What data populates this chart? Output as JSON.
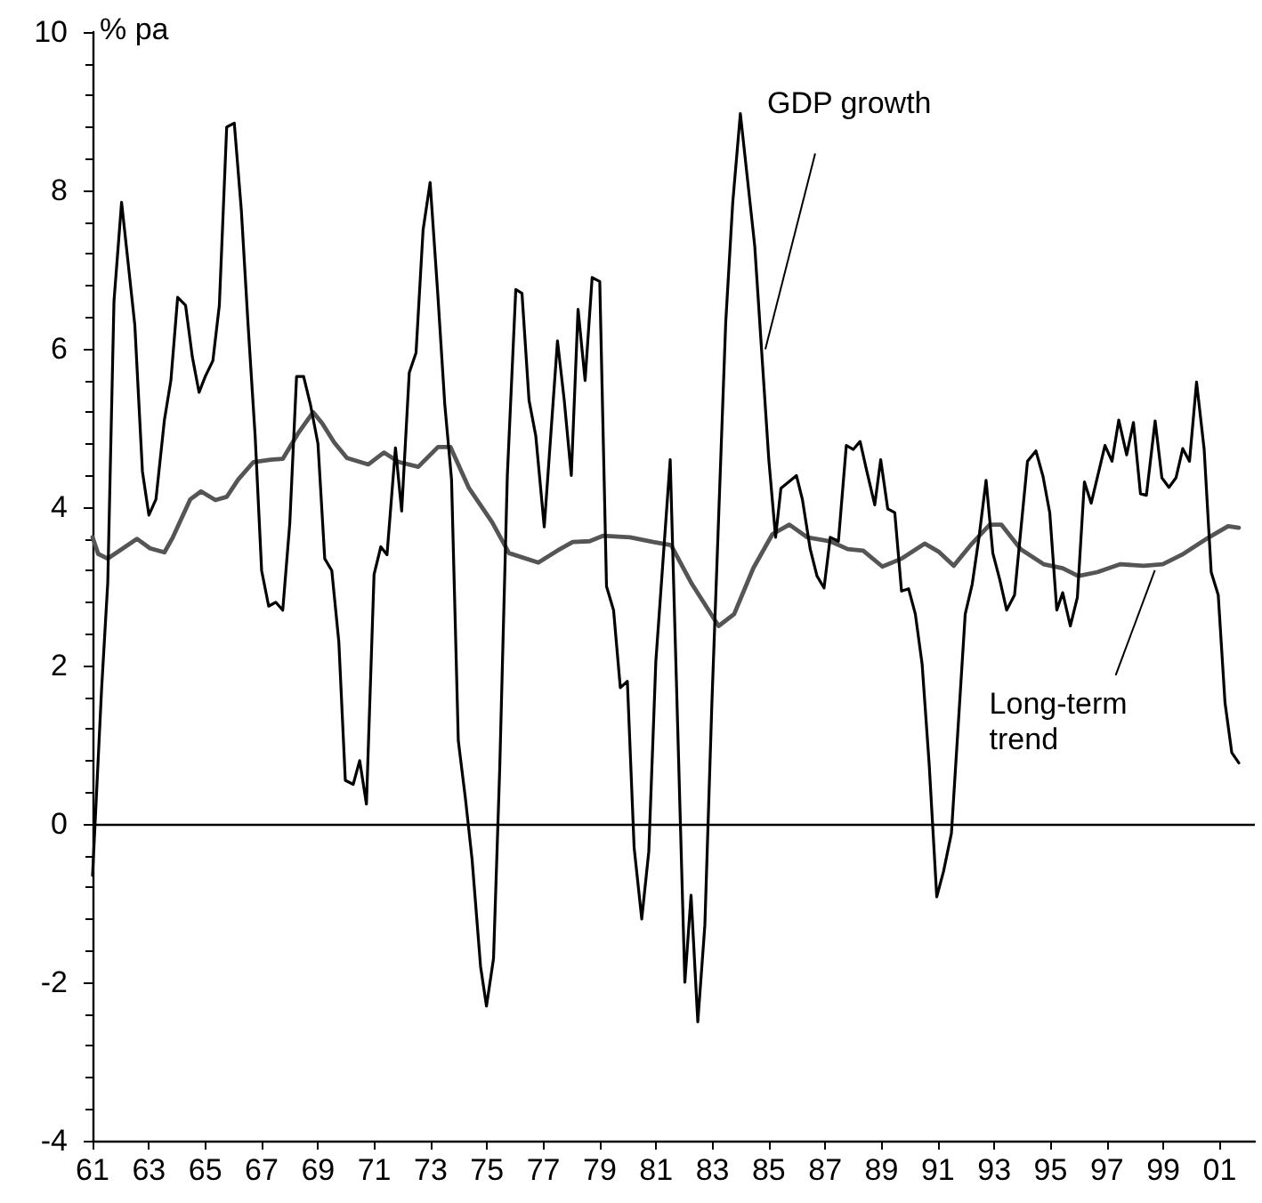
{
  "chart_data": {
    "type": "line",
    "ylabel": "% pa",
    "xlim": [
      1961,
      2002.25
    ],
    "xticks": [
      {
        "value": 1961,
        "label": "61"
      },
      {
        "value": 1963,
        "label": "63"
      },
      {
        "value": 1965,
        "label": "65"
      },
      {
        "value": 1967,
        "label": "67"
      },
      {
        "value": 1969,
        "label": "69"
      },
      {
        "value": 1971,
        "label": "71"
      },
      {
        "value": 1973,
        "label": "73"
      },
      {
        "value": 1975,
        "label": "75"
      },
      {
        "value": 1977,
        "label": "77"
      },
      {
        "value": 1979,
        "label": "79"
      },
      {
        "value": 1981,
        "label": "81"
      },
      {
        "value": 1983,
        "label": "83"
      },
      {
        "value": 1985,
        "label": "85"
      },
      {
        "value": 1987,
        "label": "87"
      },
      {
        "value": 1989,
        "label": "89"
      },
      {
        "value": 1991,
        "label": "91"
      },
      {
        "value": 1993,
        "label": "93"
      },
      {
        "value": 1995,
        "label": "95"
      },
      {
        "value": 1997,
        "label": "97"
      },
      {
        "value": 1999,
        "label": "99"
      },
      {
        "value": 2001,
        "label": "01"
      }
    ],
    "ylim": [
      -4,
      10
    ],
    "yticks": [
      -4,
      -2,
      0,
      2,
      4,
      6,
      8,
      10
    ],
    "grid": false,
    "marker": "none",
    "line_style": "solid",
    "ref_lines": [
      {
        "axis": "y",
        "value": 0,
        "color": "#000000"
      }
    ],
    "annotations": [
      {
        "text": "GDP growth",
        "x": 1984.75,
        "y": 5.95
      },
      {
        "text": "Long-term trend",
        "x": 1998.7,
        "y": 3.27
      }
    ],
    "series": [
      {
        "color": "#000000",
        "x": [
          1961.0,
          1961.32,
          1961.54,
          1961.76,
          1962.03,
          1962.5,
          1962.77,
          1963.0,
          1963.25,
          1963.55,
          1963.78,
          1964.02,
          1964.3,
          1964.54,
          1964.78,
          1965.0,
          1965.27,
          1965.5,
          1965.76,
          1966.03,
          1966.28,
          1966.52,
          1966.77,
          1967.0,
          1967.25,
          1967.5,
          1967.75,
          1968.0,
          1968.24,
          1968.49,
          1968.73,
          1969.0,
          1969.24,
          1969.49,
          1969.74,
          1969.97,
          1970.25,
          1970.48,
          1970.72,
          1970.99,
          1971.23,
          1971.45,
          1971.75,
          1971.97,
          1972.24,
          1972.48,
          1972.73,
          1972.98,
          1973.25,
          1973.5,
          1973.74,
          1973.98,
          1974.23,
          1974.47,
          1974.77,
          1974.98,
          1975.23,
          1975.45,
          1975.72,
          1976.02,
          1976.24,
          1976.49,
          1976.73,
          1977.03,
          1977.5,
          1977.74,
          1977.99,
          1978.23,
          1978.48,
          1978.73,
          1979.0,
          1979.24,
          1979.49,
          1979.73,
          1979.98,
          1980.22,
          1980.49,
          1980.74,
          1980.99,
          1981.5,
          1982.02,
          1982.24,
          1982.48,
          1982.73,
          1982.98,
          1983.47,
          1983.72,
          1983.99,
          1984.5,
          1985.0,
          1985.24,
          1985.43,
          1985.98,
          1986.19,
          1986.47,
          1986.71,
          1986.96,
          1987.18,
          1987.47,
          1987.75,
          1988.0,
          1988.24,
          1988.48,
          1988.76,
          1988.97,
          1989.22,
          1989.47,
          1989.71,
          1989.96,
          1990.2,
          1990.44,
          1990.69,
          1990.96,
          1991.2,
          1991.48,
          1991.97,
          1992.22,
          1992.46,
          1992.71,
          1992.95,
          1993.2,
          1993.44,
          1993.72,
          1994.18,
          1994.48,
          1994.73,
          1994.97,
          1995.22,
          1995.43,
          1995.7,
          1995.95,
          1996.2,
          1996.44,
          1996.93,
          1997.18,
          1997.42,
          1997.7,
          1997.94,
          1998.19,
          1998.4,
          1998.71,
          1998.95,
          1999.2,
          1999.45,
          1999.69,
          1999.93,
          2000.18,
          2000.45,
          2000.7,
          2000.95,
          2001.19,
          2001.43,
          2001.68
        ],
        "values": [
          -0.65,
          1.7,
          3.05,
          6.6,
          7.85,
          6.3,
          4.45,
          3.9,
          4.1,
          5.1,
          5.6,
          6.65,
          6.55,
          5.9,
          5.45,
          5.65,
          5.85,
          6.55,
          8.8,
          8.85,
          7.75,
          6.3,
          4.9,
          3.2,
          2.75,
          2.8,
          2.7,
          3.8,
          5.65,
          5.65,
          5.3,
          4.8,
          3.35,
          3.2,
          2.3,
          0.55,
          0.5,
          0.8,
          0.25,
          3.15,
          3.5,
          3.4,
          4.75,
          3.95,
          5.7,
          5.95,
          7.5,
          8.1,
          6.7,
          5.3,
          4.35,
          1.05,
          0.33,
          -0.45,
          -1.8,
          -2.3,
          -1.7,
          0.7,
          4.4,
          6.75,
          6.7,
          5.35,
          4.9,
          3.75,
          6.1,
          5.35,
          4.4,
          6.5,
          5.6,
          6.9,
          6.85,
          3.0,
          2.7,
          1.72,
          1.8,
          -0.3,
          -1.2,
          -0.35,
          2.05,
          4.6,
          -2.0,
          -0.9,
          -2.5,
          -1.28,
          1.53,
          6.33,
          7.85,
          8.97,
          7.3,
          4.6,
          3.62,
          4.24,
          4.4,
          4.1,
          3.47,
          3.13,
          2.98,
          3.62,
          3.57,
          4.78,
          4.73,
          4.83,
          4.45,
          4.03,
          4.6,
          3.98,
          3.93,
          2.94,
          2.97,
          2.65,
          2.02,
          0.76,
          -0.92,
          -0.6,
          -0.12,
          2.65,
          3.03,
          3.62,
          4.34,
          3.42,
          3.08,
          2.7,
          2.89,
          4.58,
          4.71,
          4.39,
          3.93,
          2.7,
          2.92,
          2.5,
          2.86,
          4.32,
          4.05,
          4.78,
          4.58,
          5.1,
          4.66,
          5.07,
          4.17,
          4.15,
          5.09,
          4.37,
          4.25,
          4.37,
          4.74,
          4.58,
          5.58,
          4.73,
          3.18,
          2.89,
          1.53,
          0.9,
          0.77
        ]
      },
      {
        "color": "#555555",
        "x": [
          1961.0,
          1961.2,
          1961.54,
          1961.95,
          1962.58,
          1963.04,
          1963.55,
          1963.85,
          1964.47,
          1964.85,
          1965.36,
          1965.76,
          1966.17,
          1966.71,
          1967.32,
          1967.75,
          1968.29,
          1968.83,
          1969.15,
          1969.57,
          1970.03,
          1970.79,
          1971.34,
          1971.87,
          1972.56,
          1973.26,
          1973.7,
          1974.36,
          1975.18,
          1975.78,
          1976.82,
          1977.49,
          1978.04,
          1978.64,
          1979.13,
          1980.08,
          1980.9,
          1981.53,
          1982.27,
          1983.22,
          1983.77,
          1984.45,
          1985.13,
          1985.73,
          1986.36,
          1987.18,
          1987.8,
          1988.35,
          1989.03,
          1989.71,
          1990.53,
          1991.02,
          1991.56,
          1992.16,
          1992.84,
          1993.25,
          1993.94,
          1994.75,
          1995.43,
          1995.98,
          1996.66,
          1997.48,
          1998.3,
          1998.98,
          1999.66,
          2000.62,
          2001.3,
          2001.68
        ],
        "values": [
          3.62,
          3.41,
          3.35,
          3.45,
          3.6,
          3.48,
          3.43,
          3.62,
          4.1,
          4.2,
          4.09,
          4.13,
          4.35,
          4.57,
          4.6,
          4.61,
          4.93,
          5.2,
          5.06,
          4.82,
          4.62,
          4.54,
          4.69,
          4.57,
          4.51,
          4.76,
          4.76,
          4.24,
          3.81,
          3.42,
          3.3,
          3.45,
          3.56,
          3.57,
          3.64,
          3.62,
          3.56,
          3.52,
          3.03,
          2.5,
          2.65,
          3.23,
          3.66,
          3.78,
          3.62,
          3.57,
          3.47,
          3.45,
          3.25,
          3.35,
          3.54,
          3.44,
          3.26,
          3.52,
          3.78,
          3.78,
          3.47,
          3.28,
          3.23,
          3.13,
          3.18,
          3.28,
          3.26,
          3.28,
          3.4,
          3.62,
          3.76,
          3.74
        ]
      }
    ]
  }
}
